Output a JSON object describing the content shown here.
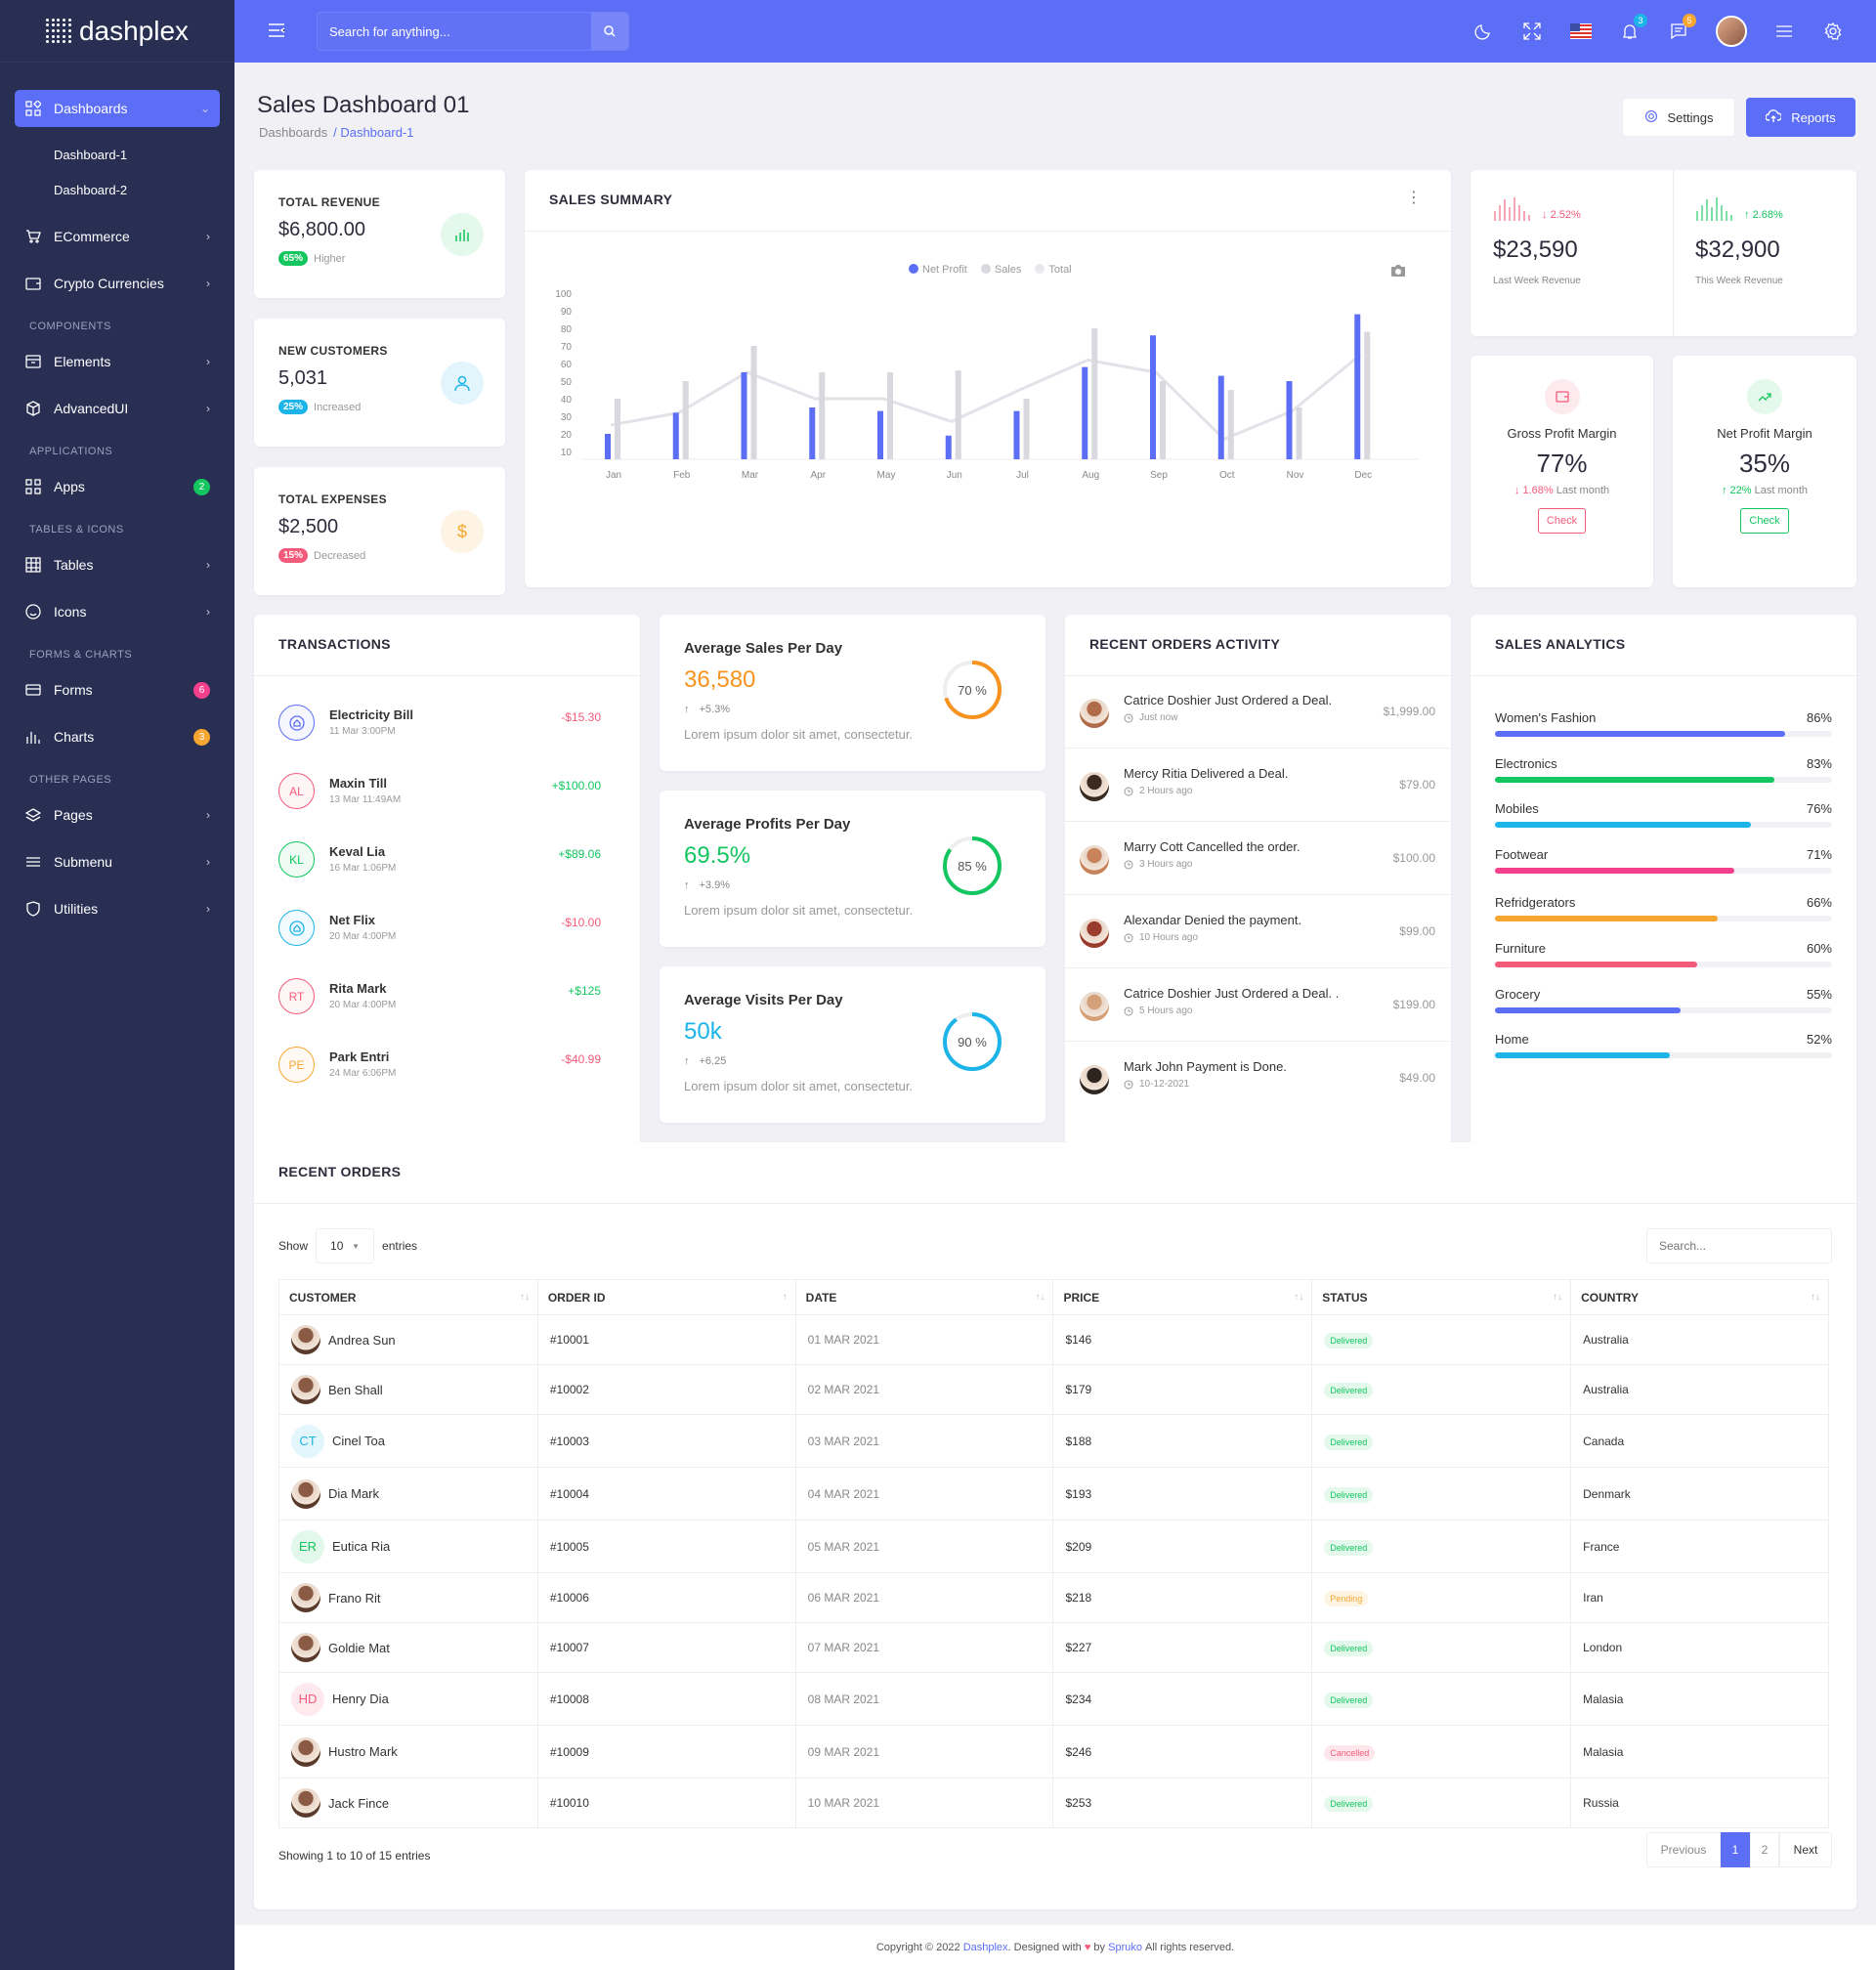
{
  "app": {
    "logo_text": "dashplex"
  },
  "sidebar": {
    "active": {
      "label": "Dashboards"
    },
    "sub": [
      {
        "label": "Dashboard-1"
      },
      {
        "label": "Dashboard-2"
      }
    ],
    "items1": [
      {
        "label": "ECommerce"
      },
      {
        "label": "Crypto Currencies"
      }
    ],
    "cat_components": "COMPONENTS",
    "items2": [
      {
        "label": "Elements"
      },
      {
        "label": "AdvancedUI"
      }
    ],
    "cat_applications": "APPLICATIONS",
    "apps": {
      "label": "Apps",
      "badge": "2"
    },
    "cat_tables": "TABLES & ICONS",
    "items3": [
      {
        "label": "Tables"
      },
      {
        "label": "Icons"
      }
    ],
    "cat_forms": "FORMS & CHARTS",
    "forms": {
      "label": "Forms",
      "badge": "6"
    },
    "charts": {
      "label": "Charts",
      "badge": "3"
    },
    "cat_other": "OTHER PAGES",
    "items4": [
      {
        "label": "Pages"
      },
      {
        "label": "Submenu"
      },
      {
        "label": "Utilities"
      }
    ]
  },
  "header": {
    "search_placeholder": "Search for anything...",
    "notif_count": "3",
    "msg_count": "5"
  },
  "page": {
    "title": "Sales Dashboard 01",
    "breadcrumb": [
      "Dashboards",
      "/ Dashboard-1"
    ],
    "settings": "Settings",
    "reports": "Reports"
  },
  "stats": [
    {
      "label": "TOTAL REVENUE",
      "value": "$6,800.00",
      "pct": "65%",
      "note": "Higher",
      "color": "#13c65f"
    },
    {
      "label": "NEW CUSTOMERS",
      "value": "5,031",
      "pct": "25%",
      "note": "Increased",
      "color": "#1cb4e9"
    },
    {
      "label": "TOTAL EXPENSES",
      "value": "$2,500",
      "pct": "15%",
      "note": "Decreased",
      "color": "#f45b7a"
    }
  ],
  "sales_summary": {
    "title": "SALES SUMMARY"
  },
  "chart_data": {
    "type": "bar",
    "categories": [
      "Jan",
      "Feb",
      "Mar",
      "Apr",
      "May",
      "Jun",
      "Jul",
      "Aug",
      "Sep",
      "Oct",
      "Nov",
      "Dec"
    ],
    "series": [
      {
        "name": "Net Profit",
        "values": [
          20,
          32,
          55,
          35,
          33,
          19,
          33,
          58,
          76,
          53,
          50,
          88
        ],
        "color": "#5b6ef5"
      },
      {
        "name": "Sales",
        "values": [
          40,
          50,
          70,
          55,
          55,
          56,
          40,
          80,
          50,
          45,
          35,
          78
        ],
        "color": "#d8d8de"
      },
      {
        "name": "Total",
        "values": [
          25,
          32,
          55,
          40,
          40,
          27,
          45,
          62,
          55,
          17,
          33,
          65
        ],
        "color": "#e8e8ec"
      }
    ],
    "ylim": [
      10,
      100
    ],
    "yticks": [
      "100",
      "90",
      "80",
      "70",
      "60",
      "50",
      "40",
      "30",
      "20",
      "10"
    ],
    "legend": "top-center"
  },
  "revenue": [
    {
      "change": "2.52%",
      "value": "$23,590",
      "label": "Last Week Revenue",
      "dir": "down"
    },
    {
      "change": "2.68%",
      "value": "$32,900",
      "label": "This Week Revenue",
      "dir": "up"
    }
  ],
  "margins": [
    {
      "label": "Gross Profit Margin",
      "value": "77%",
      "change": "1.68%",
      "note": "Last month",
      "check": "Check",
      "color": "#f45b7a"
    },
    {
      "label": "Net Profit Margin",
      "value": "35%",
      "change": "22%",
      "note": "Last month",
      "check": "Check",
      "color": "#13c65f"
    }
  ],
  "transactions": {
    "title": "TRANSACTIONS",
    "rows": [
      {
        "initials": "",
        "name": "Electricity Bill",
        "date": "11 Mar 3:00PM",
        "amount": "-$15.30",
        "color": "#5b6ef5",
        "neg": true
      },
      {
        "initials": "AL",
        "name": "Maxin Till",
        "date": "13 Mar 11:49AM",
        "amount": "+$100.00",
        "color": "#f45b7a",
        "neg": false
      },
      {
        "initials": "KL",
        "name": "Keval Lia",
        "date": "16 Mar 1:06PM",
        "amount": "+$89.06",
        "color": "#13c65f",
        "neg": false
      },
      {
        "initials": "",
        "name": "Net Flix",
        "date": "20 Mar 4:00PM",
        "amount": "-$10.00",
        "color": "#1cb4e9",
        "neg": true
      },
      {
        "initials": "RT",
        "name": "Rita Mark",
        "date": "20 Mar 4:00PM",
        "amount": "+$125",
        "color": "#f45b7a",
        "neg": false
      },
      {
        "initials": "PE",
        "name": "Park Entri",
        "date": "24 Mar 6:06PM",
        "amount": "-$40.99",
        "color": "#f7a731",
        "neg": true
      }
    ]
  },
  "averages": [
    {
      "title": "Average Sales Per Day",
      "value": "36,580",
      "change": "+5.3%",
      "desc": "Lorem ipsum dolor sit amet, consectetur.",
      "pct": 70,
      "pct_label": "70 %",
      "color": "#f7931e"
    },
    {
      "title": "Average Profits Per Day",
      "value": "69.5%",
      "change": "+3.9%",
      "desc": "Lorem ipsum dolor sit amet, consectetur.",
      "pct": 85,
      "pct_label": "85 %",
      "color": "#13c65f"
    },
    {
      "title": "Average Visits Per Day",
      "value": "50k",
      "change": "+6.25",
      "desc": "Lorem ipsum dolor sit amet, consectetur.",
      "pct": 90,
      "pct_label": "90 %",
      "color": "#1cb4e9"
    }
  ],
  "recent_activity": {
    "title": "RECENT ORDERS ACTIVITY",
    "rows": [
      {
        "text": "Catrice Doshier Just Ordered a Deal.",
        "time": "Just now",
        "amount": "$1,999.00"
      },
      {
        "text": "Mercy Ritia Delivered a Deal.",
        "time": "2 Hours ago",
        "amount": "$79.00"
      },
      {
        "text": "Marry Cott Cancelled the order.",
        "time": "3 Hours ago",
        "amount": "$100.00"
      },
      {
        "text": "Alexandar Denied the payment.",
        "time": "10 Hours ago",
        "amount": "$99.00"
      },
      {
        "text": "Catrice Doshier Just Ordered a Deal. .",
        "time": "5 Hours ago",
        "amount": "$199.00"
      },
      {
        "text": "Mark John Payment is Done.",
        "time": "10-12-2021",
        "amount": "$49.00"
      }
    ]
  },
  "sales_analytics": {
    "title": "SALES ANALYTICS",
    "rows": [
      {
        "label": "Women's Fashion",
        "pct": 86,
        "pct_label": "86%",
        "color": "#5b6ef5"
      },
      {
        "label": "Electronics",
        "pct": 83,
        "pct_label": "83%",
        "color": "#13c65f"
      },
      {
        "label": "Mobiles",
        "pct": 76,
        "pct_label": "76%",
        "color": "#1cb4e9"
      },
      {
        "label": "Footwear",
        "pct": 71,
        "pct_label": "71%",
        "color": "#f43f8d"
      },
      {
        "label": "Refridgerators",
        "pct": 66,
        "pct_label": "66%",
        "color": "#f7a731"
      },
      {
        "label": "Furniture",
        "pct": 60,
        "pct_label": "60%",
        "color": "#f45b7a"
      },
      {
        "label": "Grocery",
        "pct": 55,
        "pct_label": "55%",
        "color": "#5b6ef5"
      },
      {
        "label": "Home",
        "pct": 52,
        "pct_label": "52%",
        "color": "#1cb4e9"
      }
    ]
  },
  "recent_orders": {
    "title": "RECENT ORDERS",
    "show": "Show",
    "entries_value": "10",
    "entries": "entries",
    "search_placeholder": "Search...",
    "columns": [
      "CUSTOMER",
      "ORDER ID",
      "DATE",
      "PRICE",
      "STATUS",
      "COUNTRY"
    ],
    "rows": [
      {
        "customer": "Andrea Sun",
        "initials": "",
        "id": "#10001",
        "date": "01 MAR 2021",
        "price": "$146",
        "status": "Delivered",
        "country": "Australia"
      },
      {
        "customer": "Ben Shall",
        "initials": "",
        "id": "#10002",
        "date": "02 MAR 2021",
        "price": "$179",
        "status": "Delivered",
        "country": "Australia"
      },
      {
        "customer": "Cinel Toa",
        "initials": "CT",
        "id": "#10003",
        "date": "03 MAR 2021",
        "price": "$188",
        "status": "Delivered",
        "country": "Canada"
      },
      {
        "customer": "Dia Mark",
        "initials": "",
        "id": "#10004",
        "date": "04 MAR 2021",
        "price": "$193",
        "status": "Delivered",
        "country": "Denmark"
      },
      {
        "customer": "Eutica Ria",
        "initials": "ER",
        "id": "#10005",
        "date": "05 MAR 2021",
        "price": "$209",
        "status": "Delivered",
        "country": "France"
      },
      {
        "customer": "Frano Rit",
        "initials": "",
        "id": "#10006",
        "date": "06 MAR 2021",
        "price": "$218",
        "status": "Pending",
        "country": "Iran"
      },
      {
        "customer": "Goldie Mat",
        "initials": "",
        "id": "#10007",
        "date": "07 MAR 2021",
        "price": "$227",
        "status": "Delivered",
        "country": "London"
      },
      {
        "customer": "Henry Dia",
        "initials": "HD",
        "id": "#10008",
        "date": "08 MAR 2021",
        "price": "$234",
        "status": "Delivered",
        "country": "Malasia"
      },
      {
        "customer": "Hustro Mark",
        "initials": "",
        "id": "#10009",
        "date": "09 MAR 2021",
        "price": "$246",
        "status": "Cancelled",
        "country": "Malasia"
      },
      {
        "customer": "Jack Fince",
        "initials": "",
        "id": "#10010",
        "date": "10 MAR 2021",
        "price": "$253",
        "status": "Delivered",
        "country": "Russia"
      }
    ],
    "showing": "Showing 1 to 10 of 15 entries",
    "pagination": {
      "prev": "Previous",
      "p1": "1",
      "p2": "2",
      "next": "Next"
    }
  },
  "footer": {
    "pre": "Copyright © 2022",
    "brand": "Dashplex",
    "mid": ". Designed with",
    "by": "by",
    "author": "Spruko",
    "post": "All rights reserved."
  }
}
